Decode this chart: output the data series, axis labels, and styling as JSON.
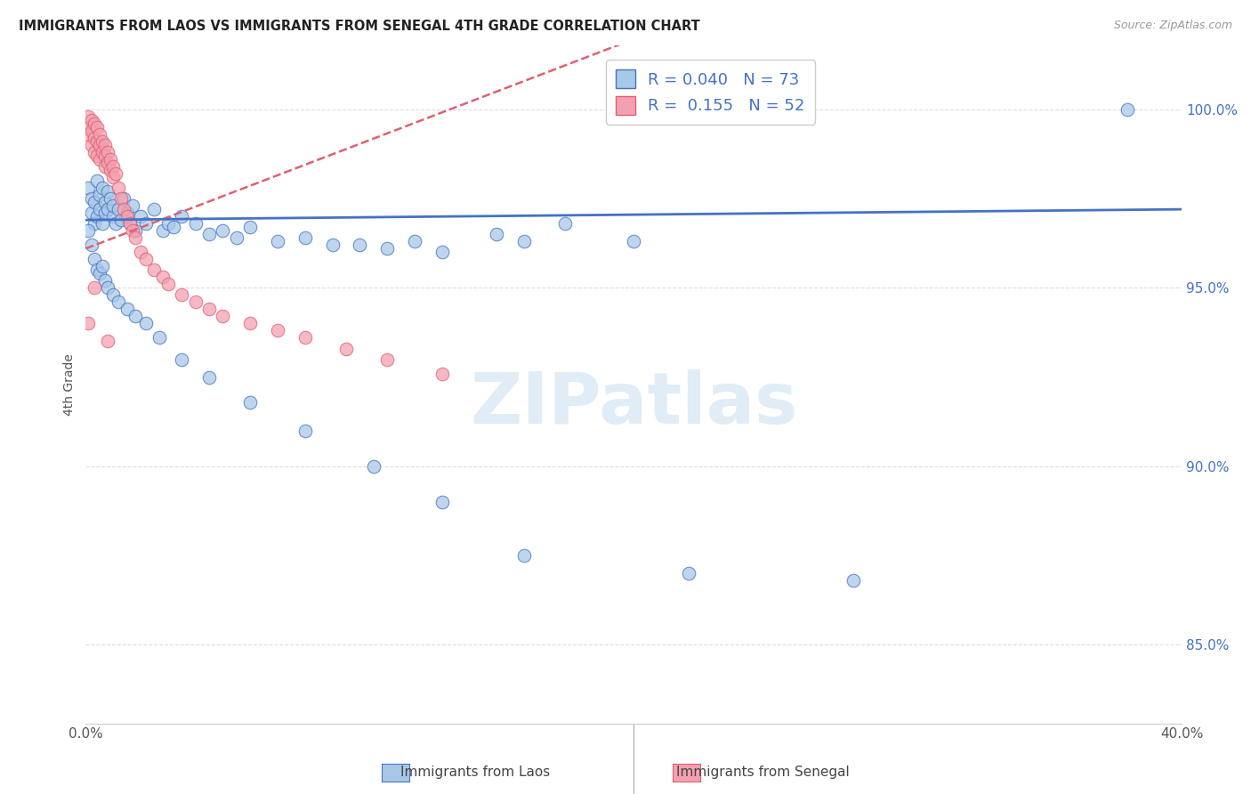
{
  "title": "IMMIGRANTS FROM LAOS VS IMMIGRANTS FROM SENEGAL 4TH GRADE CORRELATION CHART",
  "source": "Source: ZipAtlas.com",
  "ylabel": "4th Grade",
  "xlim": [
    0.0,
    0.4
  ],
  "ylim": [
    0.828,
    1.018
  ],
  "xtick_positions": [
    0.0,
    0.05,
    0.1,
    0.15,
    0.2,
    0.25,
    0.3,
    0.35,
    0.4
  ],
  "xticklabels": [
    "0.0%",
    "",
    "",
    "",
    "",
    "",
    "",
    "",
    "40.0%"
  ],
  "yticks_right": [
    0.85,
    0.9,
    0.95,
    1.0
  ],
  "ytick_right_labels": [
    "85.0%",
    "90.0%",
    "95.0%",
    "100.0%"
  ],
  "laos_R": 0.04,
  "laos_N": 73,
  "senegal_R": 0.155,
  "senegal_N": 52,
  "blue_color": "#A8C8E8",
  "pink_color": "#F4A0B0",
  "blue_line_color": "#4472C4",
  "pink_line_color": "#E06070",
  "watermark": "ZIPatlas",
  "laos_x": [
    0.001,
    0.002,
    0.002,
    0.003,
    0.003,
    0.004,
    0.004,
    0.005,
    0.005,
    0.006,
    0.006,
    0.007,
    0.007,
    0.008,
    0.008,
    0.009,
    0.01,
    0.01,
    0.011,
    0.012,
    0.013,
    0.014,
    0.015,
    0.016,
    0.017,
    0.018,
    0.02,
    0.022,
    0.025,
    0.028,
    0.03,
    0.032,
    0.035,
    0.04,
    0.045,
    0.05,
    0.055,
    0.06,
    0.07,
    0.08,
    0.09,
    0.1,
    0.11,
    0.12,
    0.13,
    0.15,
    0.16,
    0.175,
    0.2,
    0.38,
    0.001,
    0.002,
    0.003,
    0.004,
    0.005,
    0.006,
    0.007,
    0.008,
    0.01,
    0.012,
    0.015,
    0.018,
    0.022,
    0.027,
    0.035,
    0.045,
    0.06,
    0.08,
    0.105,
    0.13,
    0.16,
    0.22,
    0.28
  ],
  "laos_y": [
    0.978,
    0.975,
    0.971,
    0.968,
    0.974,
    0.97,
    0.98,
    0.976,
    0.972,
    0.978,
    0.968,
    0.974,
    0.971,
    0.972,
    0.977,
    0.975,
    0.97,
    0.973,
    0.968,
    0.972,
    0.969,
    0.975,
    0.971,
    0.968,
    0.973,
    0.966,
    0.97,
    0.968,
    0.972,
    0.966,
    0.968,
    0.967,
    0.97,
    0.968,
    0.965,
    0.966,
    0.964,
    0.967,
    0.963,
    0.964,
    0.962,
    0.962,
    0.961,
    0.963,
    0.96,
    0.965,
    0.963,
    0.968,
    0.963,
    1.0,
    0.966,
    0.962,
    0.958,
    0.955,
    0.954,
    0.956,
    0.952,
    0.95,
    0.948,
    0.946,
    0.944,
    0.942,
    0.94,
    0.936,
    0.93,
    0.925,
    0.918,
    0.91,
    0.9,
    0.89,
    0.875,
    0.87,
    0.868
  ],
  "senegal_x": [
    0.001,
    0.001,
    0.001,
    0.002,
    0.002,
    0.002,
    0.003,
    0.003,
    0.003,
    0.004,
    0.004,
    0.004,
    0.005,
    0.005,
    0.005,
    0.006,
    0.006,
    0.007,
    0.007,
    0.007,
    0.008,
    0.008,
    0.009,
    0.009,
    0.01,
    0.01,
    0.011,
    0.012,
    0.013,
    0.014,
    0.015,
    0.016,
    0.017,
    0.018,
    0.02,
    0.022,
    0.025,
    0.028,
    0.03,
    0.035,
    0.04,
    0.045,
    0.05,
    0.06,
    0.07,
    0.08,
    0.095,
    0.11,
    0.13,
    0.001,
    0.003,
    0.008
  ],
  "senegal_y": [
    0.998,
    0.995,
    0.993,
    0.997,
    0.994,
    0.99,
    0.996,
    0.992,
    0.988,
    0.995,
    0.991,
    0.987,
    0.993,
    0.99,
    0.986,
    0.991,
    0.988,
    0.99,
    0.987,
    0.984,
    0.988,
    0.985,
    0.986,
    0.983,
    0.984,
    0.981,
    0.982,
    0.978,
    0.975,
    0.972,
    0.97,
    0.968,
    0.966,
    0.964,
    0.96,
    0.958,
    0.955,
    0.953,
    0.951,
    0.948,
    0.946,
    0.944,
    0.942,
    0.94,
    0.938,
    0.936,
    0.933,
    0.93,
    0.926,
    0.94,
    0.95,
    0.935
  ]
}
